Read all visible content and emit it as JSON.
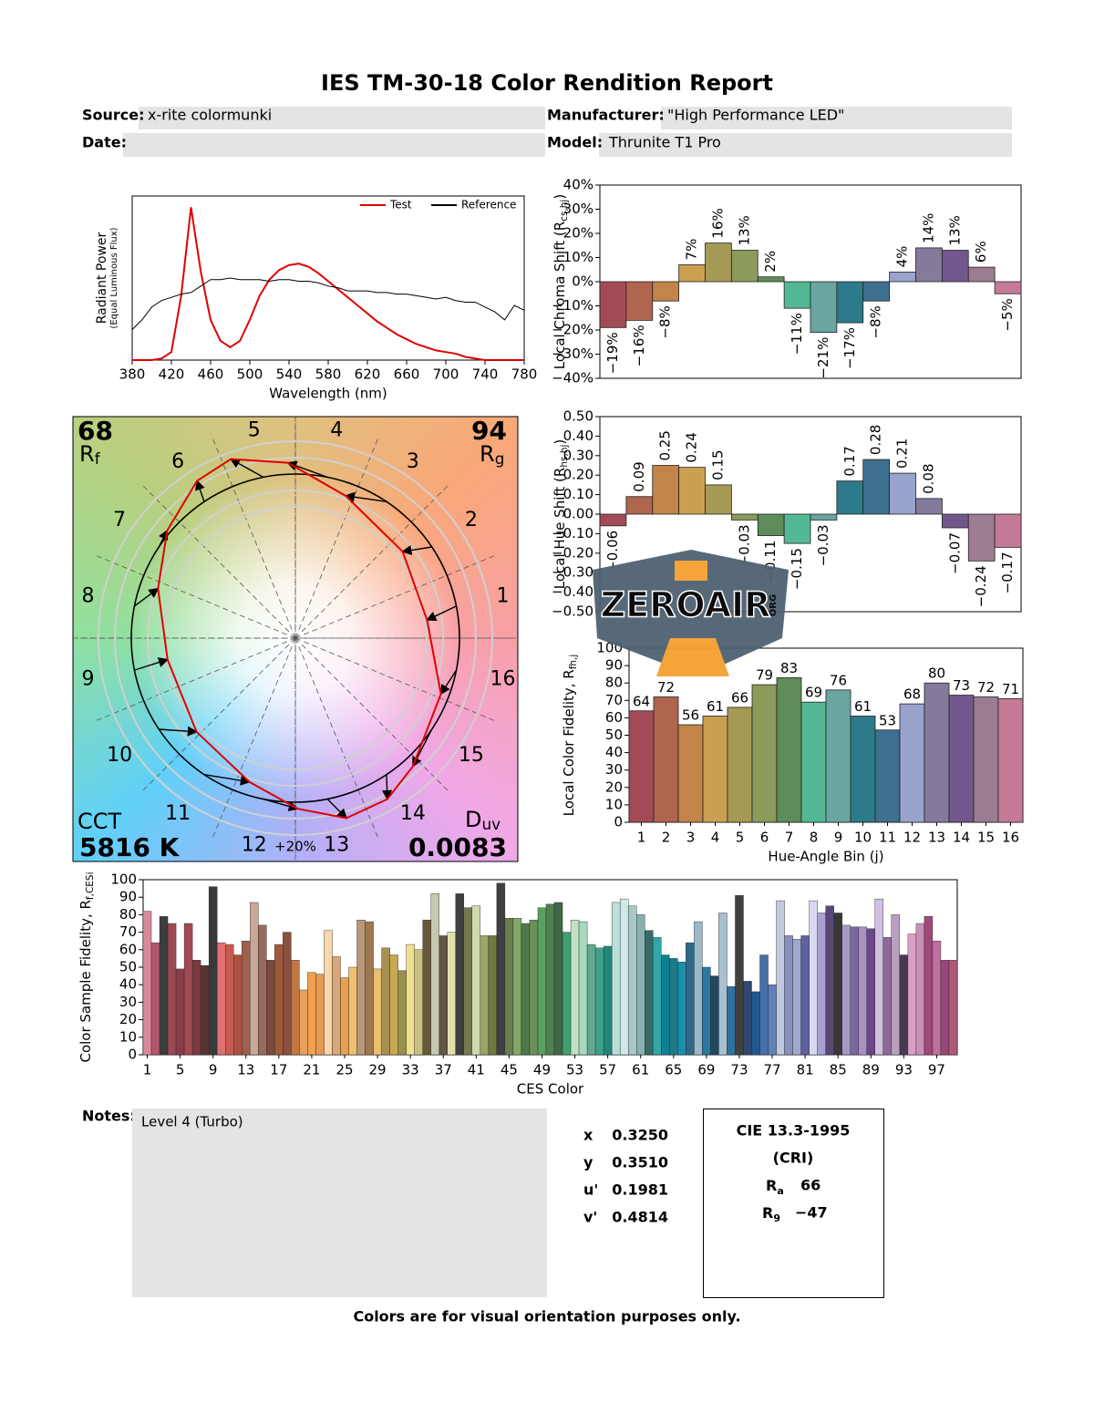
{
  "header": {
    "title": "IES TM-30-18 Color Rendition Report",
    "fields": [
      {
        "label": "Source:",
        "value": "x-rite colormunki"
      },
      {
        "label": "Manufacturer:",
        "value": "\"High Performance LED\""
      },
      {
        "label": "Date:"
      },
      {
        "label": "Model:",
        "value": "Thrunite T1 Pro"
      }
    ]
  },
  "chart_data": [
    {
      "type": "line",
      "xlabel": "Wavelength (nm)",
      "ylabel": [
        "Radiant Power"
      ],
      "ysublabel": "(Equal Luminous Flux)",
      "legend": "upper right",
      "x": [
        380,
        390,
        400,
        410,
        420,
        430,
        440,
        450,
        460,
        470,
        480,
        490,
        500,
        510,
        520,
        530,
        540,
        550,
        560,
        570,
        580,
        590,
        600,
        610,
        620,
        630,
        640,
        650,
        660,
        670,
        680,
        690,
        700,
        710,
        720,
        730,
        740,
        750,
        760,
        770,
        780
      ],
      "series": [
        {
          "name": "Test",
          "color": "#e00000",
          "values": [
            0,
            0,
            0,
            0.01,
            0.05,
            0.4,
            0.95,
            0.55,
            0.25,
            0.12,
            0.08,
            0.12,
            0.25,
            0.4,
            0.5,
            0.56,
            0.59,
            0.6,
            0.58,
            0.54,
            0.49,
            0.44,
            0.39,
            0.34,
            0.29,
            0.24,
            0.2,
            0.16,
            0.13,
            0.1,
            0.08,
            0.06,
            0.05,
            0.04,
            0.02,
            0.01,
            0,
            0,
            0,
            0,
            0
          ]
        },
        {
          "name": "Reference",
          "color": "#000000",
          "values": [
            0.19,
            0.25,
            0.33,
            0.37,
            0.39,
            0.41,
            0.42,
            0.46,
            0.5,
            0.5,
            0.51,
            0.5,
            0.5,
            0.5,
            0.49,
            0.5,
            0.5,
            0.49,
            0.49,
            0.48,
            0.46,
            0.45,
            0.43,
            0.43,
            0.43,
            0.42,
            0.42,
            0.41,
            0.41,
            0.4,
            0.39,
            0.38,
            0.39,
            0.37,
            0.36,
            0.36,
            0.33,
            0.3,
            0.25,
            0.34,
            0.31
          ]
        }
      ],
      "xlim": [
        380,
        780
      ],
      "xticks": [
        380,
        420,
        460,
        500,
        540,
        580,
        620,
        660,
        700,
        740,
        780
      ],
      "ylim": [
        0,
        1.02
      ]
    },
    {
      "type": "bar",
      "ylabel": [
        "Local Chroma Shift (R",
        "cs,hj",
        ")"
      ],
      "values": [
        -19,
        -16,
        -8,
        7,
        16,
        13,
        2,
        -11,
        -21,
        -17,
        -8,
        4,
        14,
        13,
        6,
        -5
      ],
      "value_labels": [
        "−19%",
        "−16%",
        "−8%",
        "7%",
        "16%",
        "13%",
        "2%",
        "−11%",
        "−21%",
        "−17%",
        "−8%",
        "4%",
        "14%",
        "13%",
        "6%",
        "−5%"
      ],
      "colors": [
        "#a34a57",
        "#b0654f",
        "#c28448",
        "#caa050",
        "#a59a55",
        "#8c9a5a",
        "#5e8c5a",
        "#55b894",
        "#6aa6a0",
        "#2d7a8a",
        "#3d6f8e",
        "#99a3cc",
        "#847a9c",
        "#72578c",
        "#9c7c90",
        "#c57b97"
      ],
      "ylim": [
        -40,
        40
      ],
      "yticks": [
        {
          "value": 40,
          "label": "40%"
        },
        {
          "value": 30,
          "label": "30%"
        },
        {
          "value": 20,
          "label": "20%"
        },
        {
          "value": 10,
          "label": "10%"
        },
        {
          "value": 0,
          "label": "0%"
        },
        {
          "value": -10,
          "label": "−10%"
        },
        {
          "value": -20,
          "label": "−20%"
        },
        {
          "value": -30,
          "label": "−30%"
        },
        {
          "value": -40,
          "label": "−40%"
        }
      ]
    },
    {
      "type": "bar",
      "ylabel": [
        "Local Hue Shift (R",
        "hs,hj",
        ")"
      ],
      "values": [
        -0.06,
        0.09,
        0.25,
        0.24,
        0.15,
        -0.03,
        -0.11,
        -0.15,
        -0.03,
        0.17,
        0.28,
        0.21,
        0.08,
        -0.07,
        -0.24,
        -0.17
      ],
      "value_labels": [
        "−0.06",
        "0.09",
        "0.25",
        "0.24",
        "0.15",
        "−0.03",
        "−0.11",
        "−0.15",
        "−0.03",
        "0.17",
        "0.28",
        "0.21",
        "0.08",
        "−0.07",
        "−0.24",
        "−0.17"
      ],
      "colors": [
        "#a34a57",
        "#b0654f",
        "#c28448",
        "#caa050",
        "#a59a55",
        "#8c9a5a",
        "#5e8c5a",
        "#55b894",
        "#6aa6a0",
        "#2d7a8a",
        "#3d6f8e",
        "#99a3cc",
        "#847a9c",
        "#72578c",
        "#9c7c90",
        "#c57b97"
      ],
      "ylim": [
        -0.5,
        0.5
      ],
      "yticks": [
        {
          "value": 0.5,
          "label": "0.50"
        },
        {
          "value": 0.4,
          "label": "0.40"
        },
        {
          "value": 0.3,
          "label": "0.30"
        },
        {
          "value": 0.2,
          "label": "0.20"
        },
        {
          "value": 0.1,
          "label": "0.10"
        },
        {
          "value": 0,
          "label": "0.00"
        },
        {
          "value": -0.1,
          "label": "−0.10"
        },
        {
          "value": -0.2,
          "label": "−0.20"
        },
        {
          "value": -0.3,
          "label": "−0.30"
        },
        {
          "value": -0.4,
          "label": "−0.40"
        },
        {
          "value": -0.5,
          "label": "−0.50"
        }
      ]
    },
    {
      "type": "bar",
      "xlabel": "Hue-Angle Bin (j)",
      "ylabel": [
        "Local Color Fidelity, R",
        "fh,j"
      ],
      "categories": [
        1,
        2,
        3,
        4,
        5,
        6,
        7,
        8,
        9,
        10,
        11,
        12,
        13,
        14,
        15,
        16
      ],
      "values": [
        64,
        72,
        56,
        61,
        66,
        79,
        83,
        69,
        76,
        61,
        53,
        68,
        80,
        73,
        72,
        71
      ],
      "colors": [
        "#a34a57",
        "#b0654f",
        "#c28448",
        "#caa050",
        "#a59a55",
        "#8c9a5a",
        "#5e8c5a",
        "#55b894",
        "#6aa6a0",
        "#2d7a8a",
        "#3d6f8e",
        "#99a3cc",
        "#847a9c",
        "#72578c",
        "#9c7c90",
        "#c57b97"
      ],
      "ylim": [
        0,
        100
      ],
      "yticks": [
        0,
        10,
        20,
        30,
        40,
        50,
        60,
        70,
        80,
        90,
        100
      ]
    },
    {
      "type": "vector",
      "categories": [
        1,
        2,
        3,
        4,
        5,
        6,
        7,
        8,
        9,
        10,
        11,
        12,
        13,
        14,
        15,
        16
      ],
      "rf": 68,
      "rf_symbol": [
        "R",
        "f"
      ],
      "rg": 94,
      "rg_symbol": [
        "R",
        "g"
      ],
      "cct_label": "CCT",
      "cct": "5816 K",
      "duv_symbol": [
        "D",
        "uv"
      ],
      "duv": 0.0083,
      "scale_label": "+20%"
    },
    {
      "type": "bar",
      "xlabel": "CES Color",
      "ylabel": [
        "Color Sample Fidelity, R",
        "f,CESi"
      ],
      "categories": [
        1,
        null,
        null,
        null,
        5,
        null,
        null,
        null,
        9,
        null,
        null,
        null,
        13,
        null,
        null,
        null,
        17,
        null,
        null,
        null,
        21,
        null,
        null,
        null,
        25,
        null,
        null,
        null,
        29,
        null,
        null,
        null,
        33,
        null,
        null,
        null,
        37,
        null,
        null,
        null,
        41,
        null,
        null,
        null,
        45,
        null,
        null,
        null,
        49,
        null,
        null,
        null,
        53,
        null,
        null,
        null,
        57,
        null,
        null,
        null,
        61,
        null,
        null,
        null,
        65,
        null,
        null,
        null,
        69,
        null,
        null,
        null,
        73,
        null,
        null,
        null,
        77,
        null,
        null,
        null,
        81,
        null,
        null,
        null,
        85,
        null,
        null,
        null,
        89,
        null,
        null,
        null,
        93,
        null,
        null,
        null,
        97,
        null,
        null
      ],
      "values": [
        82,
        64,
        79,
        75,
        49,
        75,
        54,
        51,
        96,
        64,
        63,
        57,
        65,
        87,
        74,
        54,
        63,
        70,
        54,
        37,
        47,
        46,
        71,
        56,
        44,
        50,
        77,
        76,
        49,
        61,
        57,
        48,
        63,
        60,
        77,
        92,
        68,
        70,
        92,
        84,
        85,
        68,
        68,
        98,
        78,
        78,
        75,
        77,
        84,
        86,
        87,
        70,
        77,
        76,
        63,
        61,
        62,
        87,
        89,
        85,
        80,
        71,
        67,
        57,
        55,
        53,
        64,
        76,
        50,
        45,
        81,
        39,
        91,
        42,
        36,
        57,
        40,
        88,
        68,
        66,
        68,
        88,
        81,
        85,
        81,
        74,
        73,
        73,
        72,
        89,
        67,
        80,
        57,
        69,
        75,
        79,
        65,
        54,
        54
      ],
      "colors": [
        "#d88a9a",
        "#b4566a",
        "#3c3c3c",
        "#9c4a55",
        "#8a3c48",
        "#a04a52",
        "#7a3a40",
        "#5a3434",
        "#3a3a3a",
        "#e27070",
        "#c85a50",
        "#b05040",
        "#a06050",
        "#c8a898",
        "#9a6a5a",
        "#7a4a3a",
        "#a05a3a",
        "#8a5040",
        "#c07840",
        "#e8a060",
        "#f0a050",
        "#e89850",
        "#f8d8a8",
        "#d8a878",
        "#e8a050",
        "#f0c070",
        "#b89878",
        "#a07850",
        "#e8c070",
        "#a89050",
        "#c8a850",
        "#989050",
        "#f0e090",
        "#c8c080",
        "#685838",
        "#c8c8b0",
        "#605840",
        "#e0e0a8",
        "#404040",
        "#787850",
        "#d0d8b0",
        "#98a860",
        "#707840",
        "#404040",
        "#688050",
        "#80a868",
        "#507848",
        "#689058",
        "#58a060",
        "#508050",
        "#406848",
        "#40a070",
        "#c0e0c8",
        "#a8d8c0",
        "#60a890",
        "#40a088",
        "#208878",
        "#b8e0d8",
        "#d0e8e8",
        "#a8c8c8",
        "#88b0b0",
        "#386868",
        "#30a8a8",
        "#108090",
        "#207888",
        "#1890a8",
        "#306888",
        "#9ab8c8",
        "#2878a0",
        "#204860",
        "#a8c0d0",
        "#3070a0",
        "#404040",
        "#304870",
        "#205890",
        "#4870a8",
        "#6080b8",
        "#c0c8e0",
        "#8890c0",
        "#a0a8d0",
        "#6060a0",
        "#d8d8f0",
        "#a8a0d0",
        "#584878",
        "#383838",
        "#a898c8",
        "#7868a0",
        "#a890c0",
        "#684888",
        "#d0c0e0",
        "#906898",
        "#b8a0c0",
        "#483850",
        "#d8a0c8",
        "#c890b8",
        "#a04878",
        "#c070a0",
        "#984878",
        "#b05878"
      ],
      "ylim": [
        0,
        100
      ],
      "yticks": [
        0,
        10,
        20,
        30,
        40,
        50,
        60,
        70,
        80,
        90,
        100
      ]
    }
  ],
  "notes": {
    "label": "Notes:",
    "text": "Level 4 (Turbo)"
  },
  "chromaticity": [
    {
      "label": "x",
      "value": "0.3250"
    },
    {
      "label": "y",
      "value": "0.3510"
    },
    {
      "label": "u'",
      "value": "0.1981"
    },
    {
      "label": "v'",
      "value": "0.4814"
    }
  ],
  "cri": {
    "title": "CIE 13.3-1995",
    "subtitle": "(CRI)",
    "rows": [
      {
        "symbol": [
          "R",
          "a"
        ],
        "value": 66
      },
      {
        "symbol": [
          "R",
          "9"
        ],
        "value": "−47"
      }
    ]
  },
  "footer": "Colors are for visual orientation purposes only.",
  "watermark": {
    "text": "ZEROAIR",
    "sub": "ORG"
  }
}
